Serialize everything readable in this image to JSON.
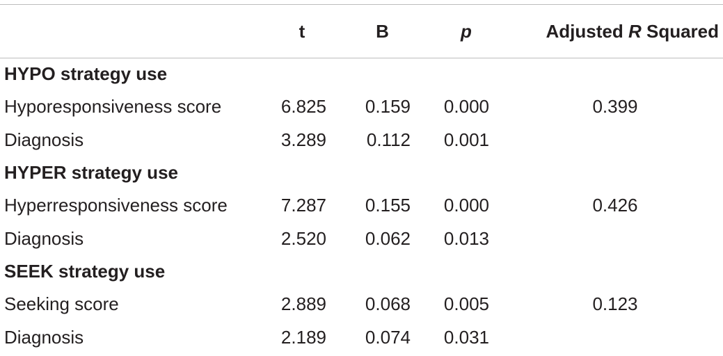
{
  "header": {
    "col_label": "",
    "col_t": "t",
    "col_b": "B",
    "col_p": "p",
    "col_r_prefix": "Adjusted ",
    "col_r_italic": "R",
    "col_r_suffix": " Squared"
  },
  "sections": [
    {
      "title": "HYPO strategy use",
      "rows": [
        {
          "label": "Hyporesponsiveness score",
          "t": "6.825",
          "b": "0.159",
          "p": "0.000",
          "r2": "0.399"
        },
        {
          "label": "Diagnosis",
          "t": "3.289",
          "b": "0.112",
          "p": "0.001",
          "r2": ""
        }
      ]
    },
    {
      "title": "HYPER strategy use",
      "rows": [
        {
          "label": "Hyperresponsiveness score",
          "t": "7.287",
          "b": "0.155",
          "p": "0.000",
          "r2": "0.426"
        },
        {
          "label": "Diagnosis",
          "t": "2.520",
          "b": "0.062",
          "p": "0.013",
          "r2": ""
        }
      ]
    },
    {
      "title": "SEEK strategy use",
      "rows": [
        {
          "label": "Seeking score",
          "t": "2.889",
          "b": "0.068",
          "p": "0.005",
          "r2": "0.123"
        },
        {
          "label": "Diagnosis",
          "t": "2.189",
          "b": "0.074",
          "p": "0.031",
          "r2": ""
        }
      ]
    }
  ]
}
